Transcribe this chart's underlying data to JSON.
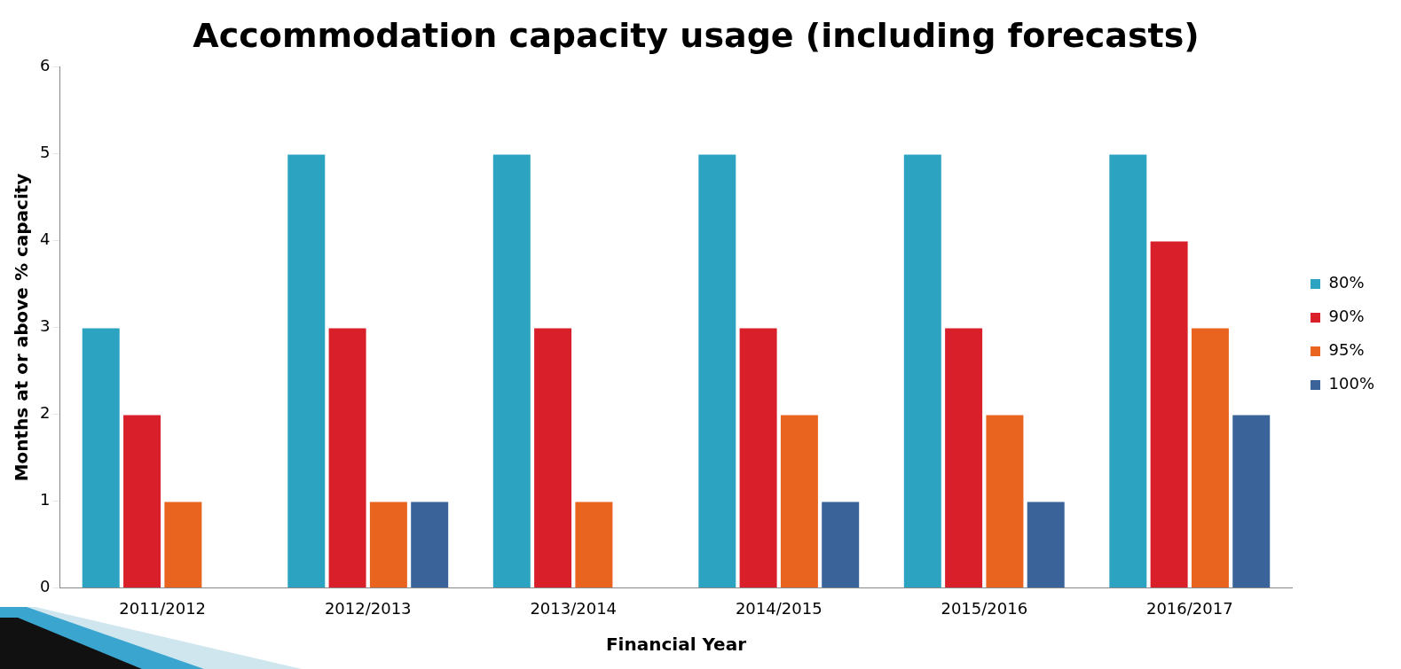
{
  "chart_data": {
    "type": "bar",
    "title": "Accommodation capacity usage (including forecasts)",
    "xlabel": "Financial Year",
    "ylabel": "Months at or above % capacity",
    "categories": [
      "2011/2012",
      "2012/2013",
      "2013/2014",
      "2014/2015",
      "2015/2016",
      "2016/2017"
    ],
    "series": [
      {
        "name": "80%",
        "color": "#2ca3c0",
        "values": [
          3,
          5,
          5,
          5,
          5,
          5
        ]
      },
      {
        "name": "90%",
        "color": "#d9202a",
        "values": [
          2,
          3,
          3,
          3,
          3,
          4
        ]
      },
      {
        "name": "95%",
        "color": "#e8641f",
        "values": [
          1,
          1,
          1,
          2,
          2,
          3
        ]
      },
      {
        "name": "100%",
        "color": "#3a6399",
        "values": [
          0,
          1,
          0,
          1,
          1,
          2
        ]
      }
    ],
    "ylim": [
      0,
      6
    ],
    "yticks": [
      0,
      1,
      2,
      3,
      4,
      5,
      6
    ],
    "grid": false,
    "legend": "right"
  }
}
